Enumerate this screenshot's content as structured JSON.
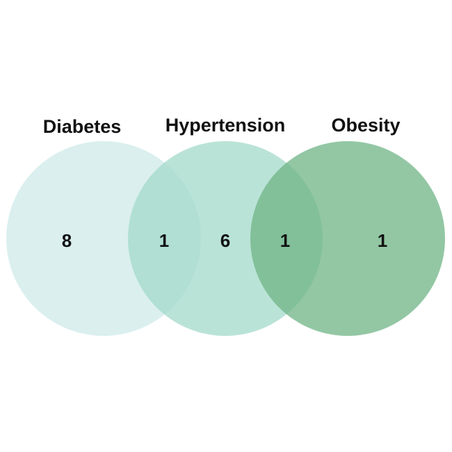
{
  "diagram": {
    "type": "venn",
    "sets": [
      {
        "key": "diabetes",
        "label": "Diabetes",
        "color": "#cfeaea"
      },
      {
        "key": "hypertension",
        "label": "Hypertension",
        "color": "#a3dac9"
      },
      {
        "key": "obesity",
        "label": "Obesity",
        "color": "#6fb486"
      }
    ],
    "regions": [
      {
        "key": "diabetes_only",
        "sets": [
          "diabetes"
        ],
        "count": "8"
      },
      {
        "key": "diabetes_hypertension",
        "sets": [
          "diabetes",
          "hypertension"
        ],
        "count": "1"
      },
      {
        "key": "hypertension_only",
        "sets": [
          "hypertension"
        ],
        "count": "6"
      },
      {
        "key": "hypertension_obesity",
        "sets": [
          "hypertension",
          "obesity"
        ],
        "count": "1"
      },
      {
        "key": "obesity_only",
        "sets": [
          "obesity"
        ],
        "count": "1"
      }
    ]
  }
}
